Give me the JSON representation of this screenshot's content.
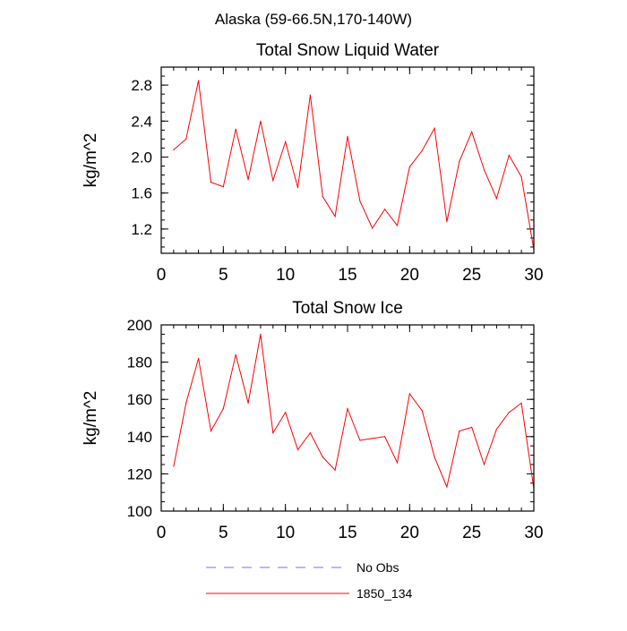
{
  "suptitle": "Alaska (59-66.5N,170-140W)",
  "chart_data": [
    {
      "type": "line",
      "title": "Total Snow Liquid Water",
      "xlabel": "",
      "ylabel": "kg/m^2",
      "xlim": [
        0,
        30
      ],
      "ylim": [
        0.93,
        3.0
      ],
      "xticks": [
        0,
        5,
        10,
        15,
        20,
        25,
        30
      ],
      "xtick_labels": [
        "0",
        "5",
        "10",
        "15",
        "20",
        "25",
        "30"
      ],
      "yticks": [
        1.2,
        1.6,
        2.0,
        2.4,
        2.8
      ],
      "ytick_labels": [
        "1.2",
        "1.6",
        "2.0",
        "2.4",
        "2.8"
      ],
      "yminor_step": 0.1,
      "xminor_step": 1,
      "grid": false,
      "series": [
        {
          "name": "1850_134",
          "color": "#ff0000",
          "x": [
            1,
            2,
            3,
            4,
            5,
            6,
            7,
            8,
            9,
            10,
            11,
            12,
            13,
            14,
            15,
            16,
            17,
            18,
            19,
            20,
            21,
            22,
            23,
            24,
            25,
            26,
            27,
            28,
            29,
            30
          ],
          "y": [
            2.08,
            2.2,
            2.85,
            1.72,
            1.67,
            2.31,
            1.75,
            2.4,
            1.74,
            2.17,
            1.66,
            2.69,
            1.56,
            1.34,
            2.23,
            1.51,
            1.21,
            1.42,
            1.24,
            1.89,
            2.07,
            2.32,
            1.28,
            1.95,
            2.28,
            1.86,
            1.54,
            2.02,
            1.78,
            0.97
          ]
        }
      ]
    },
    {
      "type": "line",
      "title": "Total Snow Ice",
      "xlabel": "",
      "ylabel": "kg/m^2",
      "xlim": [
        0,
        30
      ],
      "ylim": [
        100,
        200
      ],
      "xticks": [
        0,
        5,
        10,
        15,
        20,
        25,
        30
      ],
      "xtick_labels": [
        "0",
        "5",
        "10",
        "15",
        "20",
        "25",
        "30"
      ],
      "yticks": [
        100,
        120,
        140,
        160,
        180,
        200
      ],
      "ytick_labels": [
        "100",
        "120",
        "140",
        "160",
        "180",
        "200"
      ],
      "yminor_step": 5,
      "xminor_step": 1,
      "grid": false,
      "series": [
        {
          "name": "1850_134",
          "color": "#ff0000",
          "x": [
            1,
            2,
            3,
            4,
            5,
            6,
            7,
            8,
            9,
            10,
            11,
            12,
            13,
            14,
            15,
            16,
            17,
            18,
            19,
            20,
            21,
            22,
            23,
            24,
            25,
            26,
            27,
            28,
            29,
            30
          ],
          "y": [
            124,
            158,
            182,
            143,
            155,
            184,
            158,
            195,
            142,
            153,
            133,
            142,
            129,
            122,
            155,
            138,
            139,
            140,
            126,
            163,
            154,
            129,
            113,
            143,
            145,
            125,
            144,
            153,
            158,
            112
          ]
        }
      ]
    }
  ],
  "legend": {
    "placement": "bottom",
    "items": [
      {
        "label": "No Obs",
        "color": "#6f6fff",
        "dash": "dashed"
      },
      {
        "label": "1850_134",
        "color": "#ff0000",
        "dash": "solid"
      }
    ]
  }
}
